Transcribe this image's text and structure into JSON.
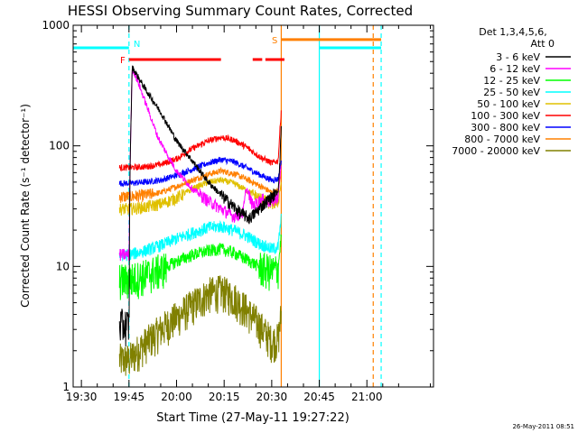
{
  "chart_data": {
    "type": "line",
    "title": "HESSI Observing Summary Count Rates, Corrected",
    "xlabel": "Start Time (27-May-11 19:27:22)",
    "ylabel": "Corrected Count Rate (s⁻¹ detector⁻¹)",
    "x_unit": "minutes of day (UT)",
    "xlim": [
      1167.4,
      1281
    ],
    "ylim": [
      1,
      1000
    ],
    "y_scale": "log",
    "x_ticks": [
      {
        "value": 1170,
        "label": "19:30"
      },
      {
        "value": 1185,
        "label": "19:45"
      },
      {
        "value": 1200,
        "label": "20:00"
      },
      {
        "value": 1215,
        "label": "20:15"
      },
      {
        "value": 1230,
        "label": "20:30"
      },
      {
        "value": 1245,
        "label": "20:45"
      },
      {
        "value": 1260,
        "label": "21:00"
      }
    ],
    "y_ticks": [
      {
        "value": 1,
        "label": "1"
      },
      {
        "value": 10,
        "label": "10"
      },
      {
        "value": 100,
        "label": "100"
      },
      {
        "value": 1000,
        "label": "1000"
      }
    ],
    "legend": {
      "header_line1": "Det 1,3,4,5,6,",
      "header_line2": "Att 0",
      "position": "right"
    },
    "series": [
      {
        "name": "3 - 6 keV",
        "color": "#000000",
        "x": [
          1182,
          1184,
          1185,
          1185.3,
          1186,
          1190,
          1195,
          1200,
          1205,
          1210,
          1215,
          1220,
          1223,
          1226,
          1229,
          1232,
          1232.6,
          1233
        ],
        "y": [
          3.3,
          3.3,
          3.3,
          60,
          450,
          300,
          190,
          110,
          75,
          50,
          37,
          28,
          25,
          30,
          36,
          42,
          75,
          150
        ]
      },
      {
        "name": "6 - 12 keV",
        "color": "#ff00ff",
        "x": [
          1182,
          1184,
          1185,
          1185.3,
          1186,
          1188,
          1191,
          1194,
          1197,
          1200,
          1205,
          1210,
          1215,
          1218,
          1221,
          1222,
          1224,
          1227,
          1230,
          1232,
          1233
        ],
        "y": [
          12.5,
          12.5,
          12.5,
          60,
          440,
          330,
          200,
          120,
          85,
          62,
          44,
          35,
          29,
          26,
          28,
          45,
          32,
          36,
          34,
          38,
          70
        ]
      },
      {
        "name": "12 - 25 keV",
        "color": "#00ff00",
        "x": [
          1182,
          1185,
          1190,
          1195,
          1200,
          1205,
          1210,
          1214,
          1218,
          1222,
          1226,
          1230,
          1232,
          1233
        ],
        "y": [
          7.8,
          7.8,
          8.5,
          9.5,
          11,
          12.5,
          13.5,
          14,
          13,
          11.5,
          10,
          9.2,
          9.6,
          18
        ]
      },
      {
        "name": "25 - 50 keV",
        "color": "#00ffff",
        "x": [
          1182,
          1185,
          1190,
          1195,
          1200,
          1205,
          1210,
          1214,
          1218,
          1222,
          1226,
          1230,
          1232,
          1233
        ],
        "y": [
          12.5,
          12.5,
          13.5,
          15,
          17,
          19,
          21,
          21.5,
          20,
          18,
          15.5,
          14,
          14.5,
          25
        ]
      },
      {
        "name": "50 - 100 keV",
        "color": "#e0c000",
        "x": [
          1182,
          1185,
          1190,
          1195,
          1200,
          1205,
          1210,
          1214,
          1218,
          1222,
          1226,
          1230,
          1232,
          1233
        ],
        "y": [
          30,
          30,
          31,
          33,
          37,
          44,
          50,
          52,
          49,
          43,
          37,
          33,
          34,
          50
        ]
      },
      {
        "name": "100 - 300 keV",
        "color": "#ff0000",
        "x": [
          1182,
          1185,
          1190,
          1195,
          1200,
          1205,
          1210,
          1214,
          1218,
          1222,
          1226,
          1230,
          1232,
          1233
        ],
        "y": [
          66,
          66,
          67,
          70,
          78,
          95,
          110,
          118,
          112,
          98,
          82,
          72,
          75,
          200
        ]
      },
      {
        "name": "300 - 800 keV",
        "color": "#0000ff",
        "x": [
          1182,
          1185,
          1190,
          1195,
          1200,
          1205,
          1210,
          1214,
          1218,
          1222,
          1226,
          1230,
          1232,
          1233
        ],
        "y": [
          49,
          49,
          50,
          52,
          57,
          64,
          72,
          77,
          74,
          66,
          58,
          52,
          53,
          75
        ]
      },
      {
        "name": "800 - 7000 keV",
        "color": "#ff8000",
        "x": [
          1182,
          1185,
          1190,
          1195,
          1200,
          1205,
          1210,
          1214,
          1218,
          1222,
          1226,
          1230,
          1232,
          1233
        ],
        "y": [
          38,
          38,
          39,
          41,
          46,
          52,
          58,
          62,
          59,
          53,
          47,
          41,
          42,
          60
        ]
      },
      {
        "name": "7000 - 20000 keV",
        "color": "#808000",
        "x": [
          1182,
          1185,
          1190,
          1195,
          1200,
          1205,
          1210,
          1214,
          1218,
          1222,
          1226,
          1230,
          1232,
          1233
        ],
        "y": [
          1.7,
          1.7,
          2.3,
          3.0,
          3.8,
          4.8,
          6.0,
          6.3,
          5.6,
          4.4,
          3.3,
          2.4,
          2.5,
          4.0
        ]
      }
    ],
    "annotations": {
      "night": [
        {
          "label": "N",
          "color": "#00ffff",
          "x": [
            1167.4,
            1185
          ],
          "level": 650
        },
        {
          "label": "",
          "color": "#00ffff",
          "x": [
            1245,
            1264.5
          ],
          "level": 650
        }
      ],
      "flare": {
        "label": "F",
        "color": "#ff0000",
        "level": 520,
        "segments": [
          [
            1185,
            1214
          ],
          [
            1224,
            1227
          ],
          [
            1228,
            1234
          ]
        ]
      },
      "saa": {
        "label": "S",
        "color": "#ff8000",
        "level": 760,
        "x": [
          1233,
          1264.5
        ]
      },
      "lines": [
        {
          "x": 1185,
          "color": "#00ffff",
          "style": "dashed"
        },
        {
          "x": 1233,
          "color": "#ff8000",
          "style": "solid"
        },
        {
          "x": 1245,
          "color": "#00ffff",
          "style": "solid"
        },
        {
          "x": 1262,
          "color": "#ff8000",
          "style": "dashed"
        },
        {
          "x": 1264.5,
          "color": "#00ffff",
          "style": "dashed"
        }
      ]
    },
    "timestamp": "26-May-2011 08:51"
  }
}
